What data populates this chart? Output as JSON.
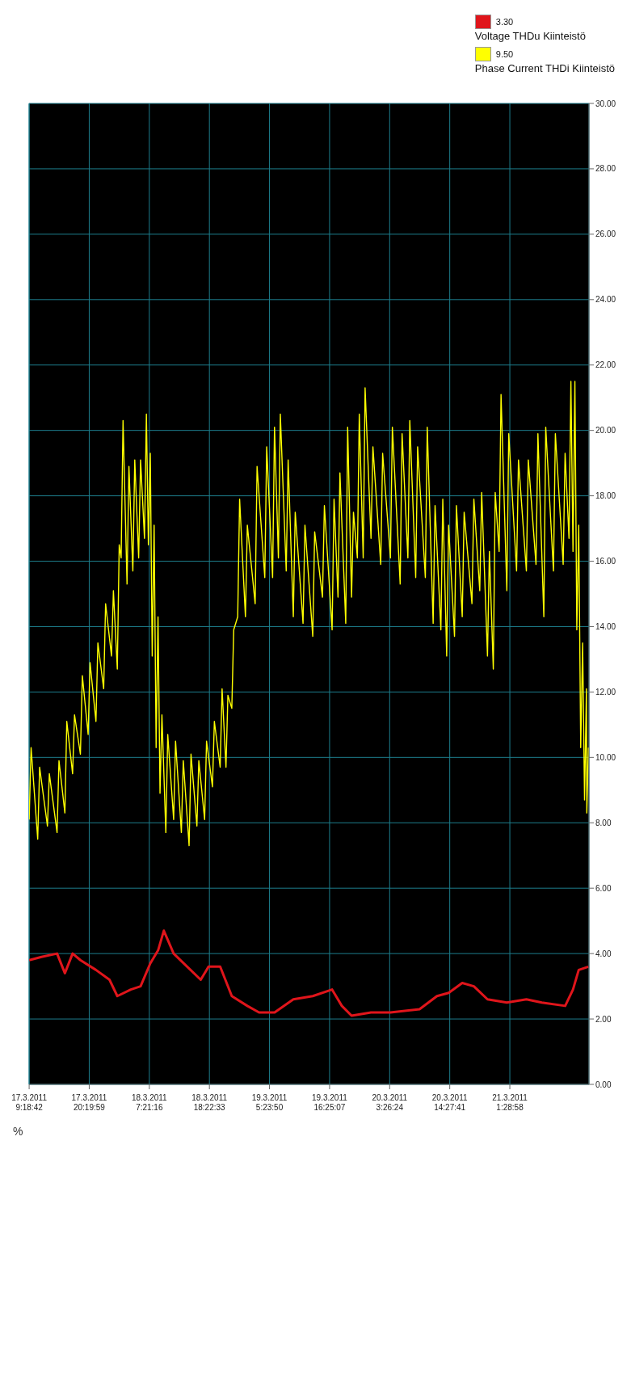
{
  "chart_data": {
    "type": "line",
    "ylabel": "%",
    "annotations": [
      "3.30",
      "9.50"
    ],
    "xlim": [
      "2011-03-17T09:18",
      "2011-03-21T16:00"
    ],
    "xticks": [
      {
        "value": "2011-03-17T09:18:42",
        "label": "17.3.2011 9:18:42"
      },
      {
        "value": "2011-03-17T20:19:59",
        "label": "17.3.2011 20:19:59"
      },
      {
        "value": "2011-03-18T07:21:16",
        "label": "18.3.2011 7:21:16"
      },
      {
        "value": "2011-03-18T18:22:33",
        "label": "18.3.2011 18:22:33"
      },
      {
        "value": "2011-03-19T05:23:50",
        "label": "19.3.2011 5:23:50"
      },
      {
        "value": "2011-03-19T16:25:07",
        "label": "19.3.2011 16:25:07"
      },
      {
        "value": "2011-03-20T03:26:24",
        "label": "20.3.2011 3:26:24"
      },
      {
        "value": "2011-03-20T14:27:41",
        "label": "20.3.2011 14:27:41"
      },
      {
        "value": "2011-03-21T01:28:58",
        "label": "21.3.2011 1:28:58"
      }
    ],
    "ylim": [
      0,
      30
    ],
    "yticks": [
      {
        "value": 0,
        "label": "0.00"
      },
      {
        "value": 2,
        "label": "2.00"
      },
      {
        "value": 4,
        "label": "4.00"
      },
      {
        "value": 6,
        "label": "6.00"
      },
      {
        "value": 8,
        "label": "8.00"
      },
      {
        "value": 10,
        "label": "10.00"
      },
      {
        "value": 12,
        "label": "12.00"
      },
      {
        "value": 14,
        "label": "14.00"
      },
      {
        "value": 16,
        "label": "16.00"
      },
      {
        "value": 18,
        "label": "18.00"
      },
      {
        "value": 20,
        "label": "20.00"
      },
      {
        "value": 22,
        "label": "22.00"
      },
      {
        "value": 24,
        "label": "24.00"
      },
      {
        "value": 26,
        "label": "26.00"
      },
      {
        "value": 28,
        "label": "28.00"
      },
      {
        "value": 30,
        "label": "30.00"
      }
    ],
    "grid": true,
    "legend": "top right",
    "marker": "none",
    "line_style": "solid",
    "series": [
      {
        "name": "Voltage THDu Kiinteistö",
        "color": "#e0151b",
        "x": [
          "2011-03-17T09:19",
          "2011-03-17T11:35",
          "2011-03-17T14:26",
          "2011-03-17T15:52",
          "2011-03-17T17:17",
          "2011-03-17T18:43",
          "2011-03-17T21:34",
          "2011-03-18T00:03",
          "2011-03-18T01:29",
          "2011-03-18T03:58",
          "2011-03-18T05:45",
          "2011-03-18T07:32",
          "2011-03-18T08:58",
          "2011-03-18T10:01",
          "2011-03-18T11:49",
          "2011-03-18T14:18",
          "2011-03-18T16:47",
          "2011-03-18T18:13",
          "2011-03-18T20:21",
          "2011-03-18T22:29",
          "2011-03-19T01:20",
          "2011-03-19T03:29",
          "2011-03-19T06:20",
          "2011-03-19T09:46",
          "2011-03-19T13:20",
          "2011-03-19T16:53",
          "2011-03-19T18:40",
          "2011-03-19T20:27",
          "2011-03-20T00:01",
          "2011-03-20T03:35",
          "2011-03-20T08:55",
          "2011-03-20T12:07",
          "2011-03-20T14:16",
          "2011-03-20T16:45",
          "2011-03-20T18:53",
          "2011-03-20T21:23",
          "2011-03-21T00:56",
          "2011-03-21T04:31",
          "2011-03-21T07:21",
          "2011-03-21T11:38",
          "2011-03-21T13:04",
          "2011-03-21T14:07",
          "2011-03-21T15:54"
        ],
        "values": [
          3.8,
          3.9,
          4.0,
          3.4,
          4.0,
          3.8,
          3.5,
          3.2,
          2.7,
          2.9,
          3.0,
          3.7,
          4.1,
          4.7,
          4.0,
          3.6,
          3.2,
          3.6,
          3.6,
          2.7,
          2.4,
          2.2,
          2.2,
          2.6,
          2.7,
          2.9,
          2.4,
          2.1,
          2.2,
          2.2,
          2.3,
          2.7,
          2.8,
          3.1,
          3.0,
          2.6,
          2.5,
          2.6,
          2.5,
          2.4,
          2.9,
          3.5,
          3.6
        ]
      },
      {
        "name": "Phase Current THDi Kiinteistö",
        "color": "#ffff00",
        "x": [
          "2011-03-17T09:19",
          "2011-03-17T09:40",
          "2011-03-17T10:53",
          "2011-03-17T11:14",
          "2011-03-17T12:40",
          "2011-03-17T13:01",
          "2011-03-17T14:26",
          "2011-03-17T14:47",
          "2011-03-17T15:52",
          "2011-03-17T16:13",
          "2011-03-17T17:17",
          "2011-03-17T17:38",
          "2011-03-17T18:43",
          "2011-03-17T19:04",
          "2011-03-17T20:08",
          "2011-03-17T20:29",
          "2011-03-17T21:34",
          "2011-03-17T21:55",
          "2011-03-17T22:59",
          "2011-03-17T23:20",
          "2011-03-18T00:25",
          "2011-03-18T00:46",
          "2011-03-18T01:29",
          "2011-03-18T01:50",
          "2011-03-18T02:11",
          "2011-03-18T02:32",
          "2011-03-18T03:16",
          "2011-03-18T03:37",
          "2011-03-18T04:20",
          "2011-03-18T04:41",
          "2011-03-18T05:24",
          "2011-03-18T05:45",
          "2011-03-18T06:28",
          "2011-03-18T06:49",
          "2011-03-18T07:11",
          "2011-03-18T07:32",
          "2011-03-18T07:53",
          "2011-03-18T08:14",
          "2011-03-18T08:36",
          "2011-03-18T08:57",
          "2011-03-18T09:19",
          "2011-03-18T09:40",
          "2011-03-18T10:23",
          "2011-03-18T10:44",
          "2011-03-18T11:49",
          "2011-03-18T12:10",
          "2011-03-18T13:14",
          "2011-03-18T13:35",
          "2011-03-18T14:39",
          "2011-03-18T15:00",
          "2011-03-18T16:05",
          "2011-03-18T16:26",
          "2011-03-18T17:30",
          "2011-03-18T17:51",
          "2011-03-18T18:56",
          "2011-03-18T19:17",
          "2011-03-18T20:21",
          "2011-03-18T20:42",
          "2011-03-18T21:25",
          "2011-03-18T21:46",
          "2011-03-18T22:29",
          "2011-03-18T22:50",
          "2011-03-18T23:34",
          "2011-03-18T23:55",
          "2011-03-19T00:59",
          "2011-03-19T01:20",
          "2011-03-19T02:46",
          "2011-03-19T03:07",
          "2011-03-19T04:32",
          "2011-03-19T04:53",
          "2011-03-19T05:58",
          "2011-03-19T06:19",
          "2011-03-19T07:02",
          "2011-03-19T07:23",
          "2011-03-19T08:28",
          "2011-03-19T08:49",
          "2011-03-19T09:46",
          "2011-03-19T10:07",
          "2011-03-19T11:33",
          "2011-03-19T11:54",
          "2011-03-19T13:20",
          "2011-03-19T13:41",
          "2011-03-19T15:07",
          "2011-03-19T15:28",
          "2011-03-19T16:53",
          "2011-03-19T17:14",
          "2011-03-19T17:58",
          "2011-03-19T18:19",
          "2011-03-19T19:23",
          "2011-03-19T19:44",
          "2011-03-19T20:27",
          "2011-03-19T20:48",
          "2011-03-19T21:31",
          "2011-03-19T21:52",
          "2011-03-19T22:35",
          "2011-03-19T22:56",
          "2011-03-20T00:01",
          "2011-03-20T00:22",
          "2011-03-20T01:48",
          "2011-03-20T02:09",
          "2011-03-20T03:35",
          "2011-03-20T03:56",
          "2011-03-20T05:22",
          "2011-03-20T05:43",
          "2011-03-20T06:47",
          "2011-03-20T07:08",
          "2011-03-20T08:13",
          "2011-03-20T08:34",
          "2011-03-20T09:59",
          "2011-03-20T10:20",
          "2011-03-20T11:25",
          "2011-03-20T11:46",
          "2011-03-20T12:50",
          "2011-03-20T13:11",
          "2011-03-20T13:54",
          "2011-03-20T14:15",
          "2011-03-20T15:20",
          "2011-03-20T15:41",
          "2011-03-20T16:45",
          "2011-03-20T17:06",
          "2011-03-20T18:32",
          "2011-03-20T18:53",
          "2011-03-20T19:58",
          "2011-03-20T20:19",
          "2011-03-20T21:23",
          "2011-03-20T21:44",
          "2011-03-20T22:27",
          "2011-03-20T22:48",
          "2011-03-20T23:31",
          "2011-03-20T23:52",
          "2011-03-21T00:56",
          "2011-03-21T01:17",
          "2011-03-21T02:43",
          "2011-03-21T03:04",
          "2011-03-21T04:31",
          "2011-03-21T04:52",
          "2011-03-21T06:17",
          "2011-03-21T06:38",
          "2011-03-21T07:43",
          "2011-03-21T08:04",
          "2011-03-21T09:29",
          "2011-03-21T09:50",
          "2011-03-21T11:16",
          "2011-03-21T11:37",
          "2011-03-21T12:20",
          "2011-03-21T12:41",
          "2011-03-21T13:04",
          "2011-03-21T13:25",
          "2011-03-21T13:46",
          "2011-03-21T14:07",
          "2011-03-21T14:29",
          "2011-03-21T14:50",
          "2011-03-21T15:11",
          "2011-03-21T15:32",
          "2011-03-21T15:36",
          "2011-03-21T15:54"
        ],
        "values": [
          8.1,
          10.3,
          7.5,
          9.7,
          7.9,
          9.5,
          7.7,
          9.9,
          8.3,
          11.1,
          9.5,
          11.3,
          10.1,
          12.5,
          10.7,
          12.9,
          11.1,
          13.5,
          12.1,
          14.7,
          13.1,
          15.1,
          12.7,
          16.5,
          16.1,
          20.3,
          15.3,
          18.9,
          15.7,
          19.1,
          16.1,
          19.1,
          16.7,
          20.5,
          16.5,
          19.3,
          13.1,
          17.1,
          10.3,
          14.3,
          8.9,
          11.3,
          7.7,
          10.7,
          8.1,
          10.5,
          7.7,
          9.9,
          7.3,
          10.1,
          7.9,
          9.9,
          8.1,
          10.5,
          9.1,
          11.1,
          9.7,
          12.1,
          9.7,
          11.9,
          11.5,
          13.9,
          14.3,
          17.9,
          14.3,
          17.1,
          14.7,
          18.9,
          15.5,
          19.5,
          15.5,
          20.1,
          16.1,
          20.5,
          15.7,
          19.1,
          14.3,
          17.5,
          14.1,
          17.1,
          13.7,
          16.9,
          14.9,
          17.7,
          13.9,
          17.9,
          14.9,
          18.7,
          14.1,
          20.1,
          14.9,
          17.5,
          16.1,
          20.5,
          16.1,
          21.3,
          16.7,
          19.5,
          15.9,
          19.3,
          16.1,
          20.1,
          15.3,
          19.9,
          16.1,
          20.3,
          15.5,
          19.5,
          15.5,
          20.1,
          14.1,
          17.7,
          13.9,
          17.9,
          13.1,
          17.1,
          13.7,
          17.7,
          14.3,
          17.5,
          14.7,
          17.9,
          15.1,
          18.1,
          13.1,
          16.3,
          12.7,
          18.1,
          16.3,
          21.1,
          15.1,
          19.9,
          15.7,
          19.1,
          15.7,
          19.1,
          15.9,
          19.9,
          14.3,
          20.1,
          15.7,
          19.9,
          15.9,
          19.3,
          16.7,
          21.5,
          16.3,
          21.5,
          13.9,
          17.1,
          10.3,
          13.5,
          8.7,
          12.1,
          8.3,
          10.3
        ]
      }
    ]
  }
}
